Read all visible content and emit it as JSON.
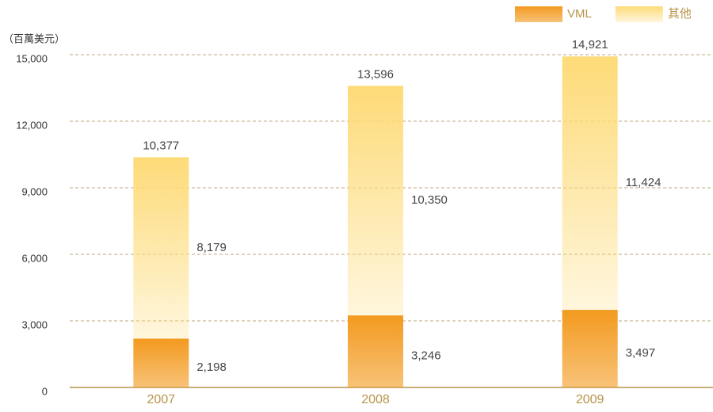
{
  "chart_data": {
    "type": "stacked_bar",
    "unit_label": "（百萬美元）",
    "categories": [
      "2007",
      "2008",
      "2009"
    ],
    "series": [
      {
        "name": "VML",
        "color": "#f39a1f",
        "values": [
          2198,
          3246,
          3497
        ],
        "value_labels": [
          "2,198",
          "3,246",
          "3,497"
        ]
      },
      {
        "name": "其他",
        "color": "#fedb78",
        "values": [
          8179,
          10350,
          11424
        ],
        "value_labels": [
          "8,179",
          "10,350",
          "11,424"
        ]
      }
    ],
    "totals": [
      10377,
      13596,
      14921
    ],
    "total_labels": [
      "10,377",
      "13,596",
      "14,921"
    ],
    "ylim": [
      0,
      15000
    ],
    "yticks": [
      0,
      {
        "value": 3000,
        "label": "3,000"
      },
      {
        "value": 6000,
        "label": "6,000"
      },
      {
        "value": 9000,
        "label": "9,000"
      },
      {
        "value": 12000,
        "label": "12,000"
      },
      {
        "value": 15000,
        "label": "15,000"
      }
    ],
    "grid": true,
    "legend": "top-right"
  }
}
